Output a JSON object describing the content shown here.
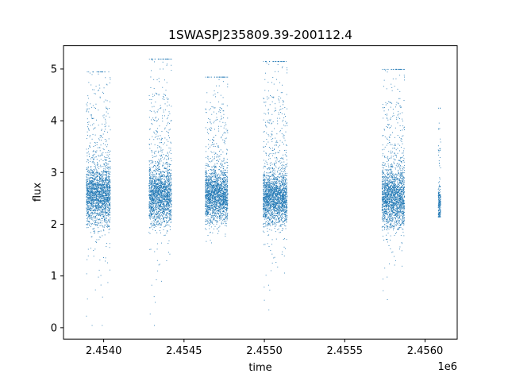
{
  "chart_data": {
    "type": "scatter",
    "title": "1SWASPJ235809.39-200112.4",
    "xlabel": "time",
    "ylabel": "flux",
    "x_offset_label": "1e6",
    "xlim": [
      2453750,
      2456200
    ],
    "ylim": [
      -0.22,
      5.45
    ],
    "x_ticks": [
      2.454,
      2.4545,
      2.455,
      2.4555,
      2.456
    ],
    "x_tick_labels": [
      "2.4540",
      "2.4545",
      "2.4550",
      "2.4555",
      "2.4560"
    ],
    "y_ticks": [
      0,
      1,
      2,
      3,
      4,
      5
    ],
    "y_tick_labels": [
      "0",
      "1",
      "2",
      "3",
      "4",
      "5"
    ],
    "grid": false,
    "point_color": "#1f77b4",
    "seasons": [
      {
        "x_start": 2453890,
        "x_end": 2454040,
        "flux_center": 2.55,
        "flux_spread": 0.28,
        "flux_max": 4.95,
        "flux_min": 0.05
      },
      {
        "x_start": 2454280,
        "x_end": 2454420,
        "flux_center": 2.55,
        "flux_spread": 0.28,
        "flux_max": 5.2,
        "flux_min": 0.05
      },
      {
        "x_start": 2454630,
        "x_end": 2454770,
        "flux_center": 2.55,
        "flux_spread": 0.25,
        "flux_max": 4.85,
        "flux_min": 1.45
      },
      {
        "x_start": 2454990,
        "x_end": 2455140,
        "flux_center": 2.5,
        "flux_spread": 0.25,
        "flux_max": 5.15,
        "flux_min": 0.35
      },
      {
        "x_start": 2455730,
        "x_end": 2455870,
        "flux_center": 2.5,
        "flux_spread": 0.28,
        "flux_max": 5.0,
        "flux_min": 0.55
      },
      {
        "x_start": 2456080,
        "x_end": 2456095,
        "flux_center": 2.35,
        "flux_spread": 0.2,
        "flux_max": 4.25,
        "flux_min": 2.15
      }
    ]
  }
}
